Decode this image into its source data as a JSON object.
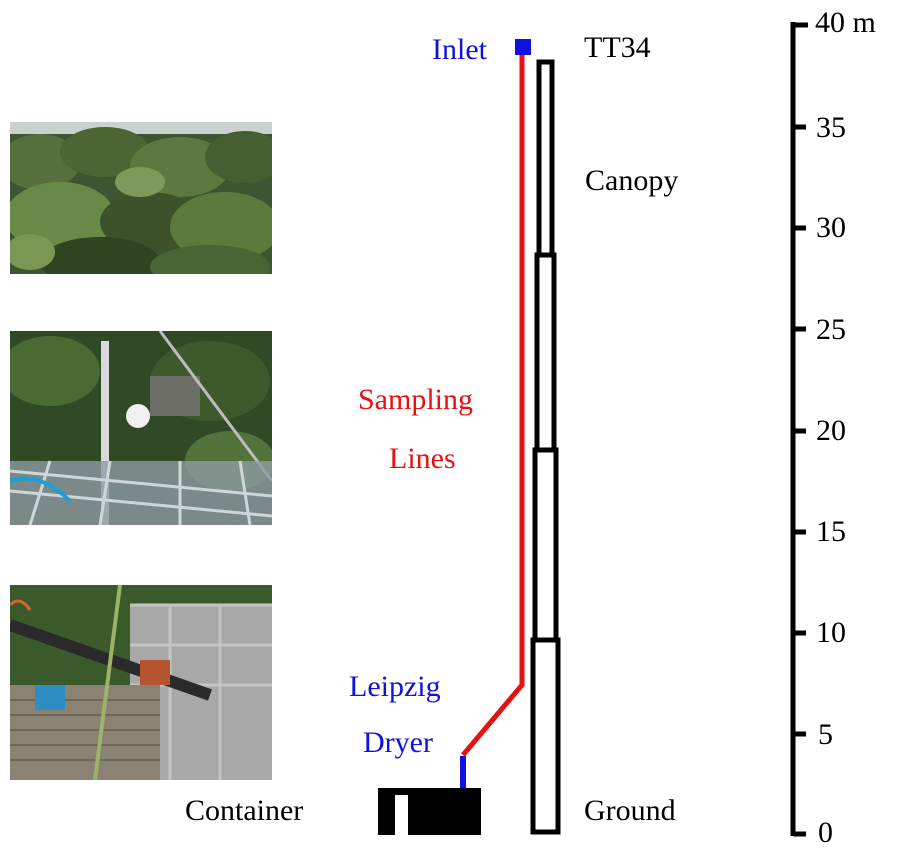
{
  "labels": {
    "inlet": "Inlet",
    "tower": "TT34",
    "canopy": "Canopy",
    "sampling_line1": "Sampling",
    "sampling_line2": "Lines",
    "dryer_line1": "Leipzig",
    "dryer_line2": "Dryer",
    "container": "Container",
    "ground": "Ground"
  },
  "scale": {
    "unit": "m",
    "top_label": "40 m",
    "ticks": [
      "35",
      "30",
      "25",
      "20",
      "15",
      "10",
      "5",
      "0"
    ]
  },
  "photos": [
    {
      "subject": "forest-canopy-photo"
    },
    {
      "subject": "tower-top-instruments-photo"
    },
    {
      "subject": "tower-base-platform-photo"
    }
  ],
  "colors": {
    "sampling_line": "#e81010",
    "inlet_dryer": "#1010e0",
    "structure": "#000000"
  }
}
